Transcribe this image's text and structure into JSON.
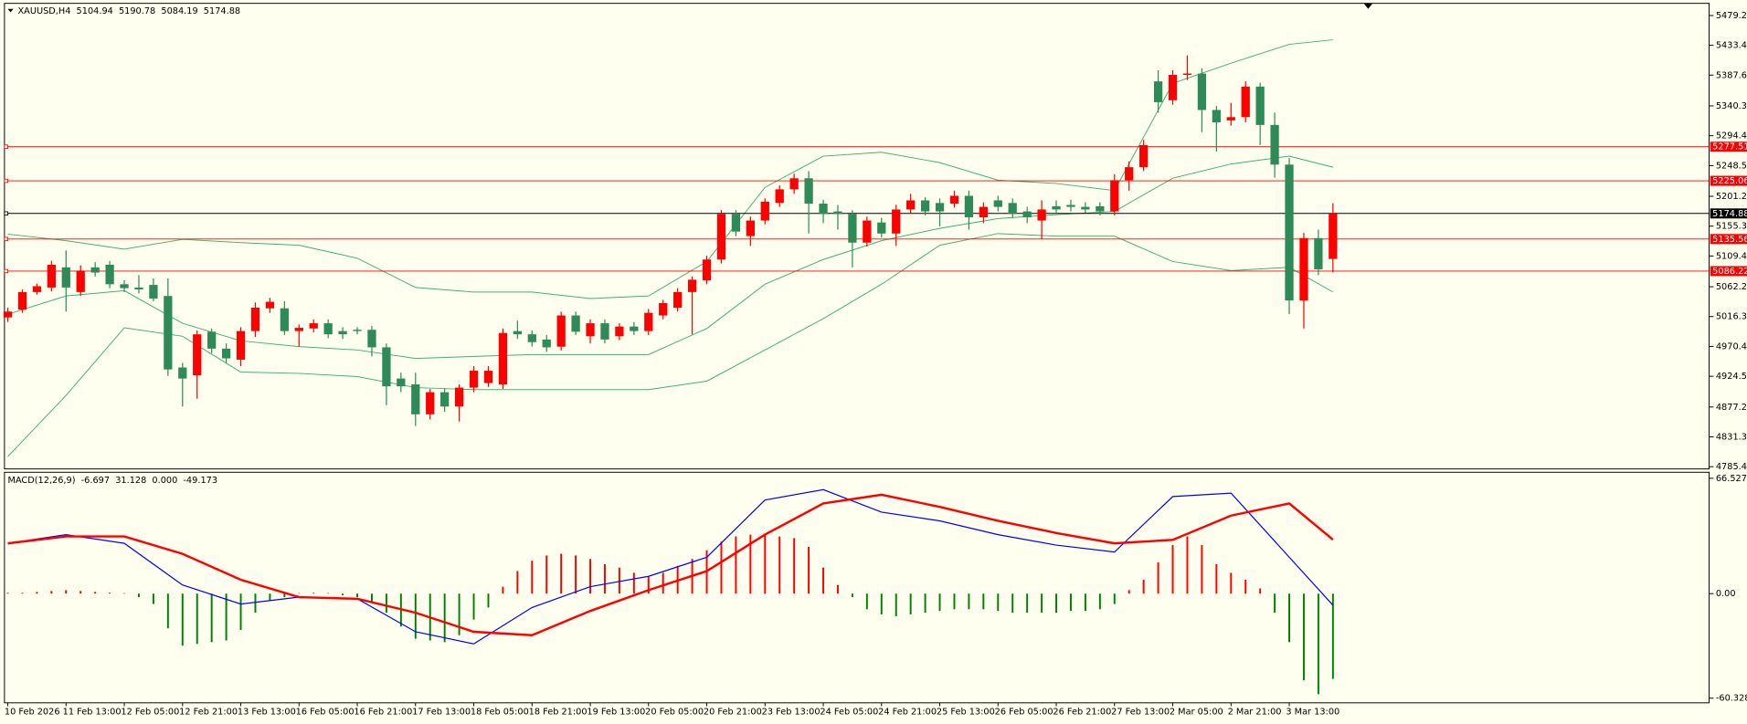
{
  "chart_data": [
    {
      "type": "candlestick",
      "title": "XAUUSD,H4",
      "categories": [
        "10 Feb 2026",
        null,
        null,
        null,
        "11 Feb 13:00",
        null,
        null,
        null,
        "12 Feb 05:00",
        null,
        null,
        null,
        "12 Feb 21:00",
        null,
        null,
        null,
        "13 Feb 13:00",
        null,
        null,
        null,
        "16 Feb 05:00",
        null,
        null,
        null,
        "16 Feb 21:00",
        null,
        null,
        null,
        "17 Feb 13:00",
        null,
        null,
        null,
        "18 Feb 05:00",
        null,
        null,
        null,
        "18 Feb 21:00",
        null,
        null,
        null,
        "19 Feb 13:00",
        null,
        null,
        null,
        "20 Feb 05:00",
        null,
        null,
        null,
        "20 Feb 21:00",
        null,
        null,
        null,
        "23 Feb 13:00",
        null,
        null,
        null,
        "24 Feb 05:00",
        null,
        null,
        null,
        "24 Feb 21:00",
        null,
        null,
        null,
        "25 Feb 13:00",
        null,
        null,
        null,
        "26 Feb 05:00",
        null,
        null,
        null,
        "26 Feb 21:00",
        null,
        null,
        null,
        "27 Feb 13:00",
        null,
        null,
        null,
        "2 Mar 05:00",
        null,
        null,
        null,
        "2 Mar 21:00",
        null,
        null,
        null,
        "3 Mar 13:00",
        null,
        null,
        null
      ],
      "open": [
        5015,
        5027,
        5054,
        5061,
        5092,
        5054,
        5092,
        5096,
        5066,
        5061,
        5065,
        5048,
        4938,
        4926,
        4993,
        4967,
        4950,
        4994,
        5029,
        5029,
        4994,
        4998,
        5006,
        4994,
        4996,
        4996,
        4969,
        4921,
        4912,
        4866,
        4900,
        4878,
        4907,
        4914,
        4912,
        4994,
        4989,
        4981,
        4970,
        5018,
        4986,
        5006,
        4986,
        5001,
        4994,
        5018,
        5030,
        5054,
        5072,
        5104,
        5174,
        5140,
        5164,
        5191,
        5212,
        5229,
        5190,
        5178,
        5174,
        5130,
        5161,
        5144,
        5181,
        5195,
        5191,
        5190,
        5202,
        5169,
        5195,
        5191,
        5178,
        5164,
        5186,
        5188,
        5185,
        5186,
        5178,
        5226,
        5246,
        5378,
        5349,
        5388,
        5390,
        5334,
        5318,
        5323,
        5370,
        5311,
        5250,
        5041,
        5137,
        5104.94
      ],
      "high": [
        5030,
        5058,
        5067,
        5102,
        5118,
        5095,
        5100,
        5102,
        5072,
        5080,
        5075,
        5075,
        4945,
        4995,
        4998,
        4975,
        5000,
        5038,
        5045,
        5040,
        5004,
        5012,
        5012,
        5000,
        5000,
        5002,
        4975,
        4930,
        4930,
        4905,
        4906,
        4912,
        4940,
        4940,
        4998,
        5010,
        4995,
        4988,
        5024,
        5024,
        5012,
        5012,
        5006,
        5008,
        5028,
        5042,
        5060,
        5078,
        5110,
        5180,
        5180,
        5170,
        5198,
        5218,
        5236,
        5240,
        5196,
        5188,
        5180,
        5170,
        5168,
        5188,
        5205,
        5200,
        5198,
        5210,
        5210,
        5192,
        5202,
        5198,
        5185,
        5195,
        5195,
        5196,
        5192,
        5192,
        5235,
        5255,
        5288,
        5395,
        5395,
        5418,
        5398,
        5340,
        5345,
        5378,
        5376,
        5330,
        5260,
        5145,
        5150,
        5190.78
      ],
      "low": [
        5008,
        5022,
        5050,
        5055,
        5024,
        5048,
        5078,
        5060,
        5054,
        5052,
        5040,
        4925,
        4878,
        4890,
        4960,
        4945,
        4940,
        4985,
        5022,
        4988,
        4970,
        4992,
        4983,
        4982,
        4989,
        4955,
        4880,
        4900,
        4848,
        4858,
        4870,
        4855,
        4900,
        4908,
        4905,
        4982,
        4970,
        4962,
        4964,
        4988,
        4975,
        4975,
        4980,
        4988,
        4988,
        5012,
        5024,
        4989,
        5066,
        5098,
        5140,
        5125,
        5158,
        5185,
        5205,
        5144,
        5160,
        5150,
        5092,
        5124,
        5138,
        5125,
        5175,
        5172,
        5155,
        5184,
        5150,
        5160,
        5178,
        5168,
        5160,
        5135,
        5174,
        5178,
        5176,
        5172,
        5172,
        5210,
        5240,
        5330,
        5342,
        5380,
        5300,
        5270,
        5310,
        5315,
        5280,
        5230,
        5020,
        4998,
        5080,
        5084.19
      ],
      "close": [
        5024,
        5054,
        5063,
        5096,
        5061,
        5087,
        5084,
        5066,
        5060,
        5058,
        5044,
        4935,
        4921,
        4989,
        4967,
        4952,
        4994,
        5030,
        5039,
        4994,
        4999,
        5006,
        4989,
        4989,
        4994,
        4969,
        4909,
        4909,
        4866,
        4900,
        4878,
        4907,
        4933,
        4933,
        4991,
        4989,
        4977,
        4969,
        5018,
        4993,
        5006,
        4981,
        5001,
        4994,
        5022,
        5037,
        5054,
        5073,
        5104,
        5174,
        5147,
        5164,
        5193,
        5212,
        5229,
        5190,
        5174,
        5174,
        5130,
        5164,
        5144,
        5181,
        5195,
        5178,
        5178,
        5202,
        5169,
        5185,
        5185,
        5174,
        5169,
        5181,
        5181,
        5185,
        5181,
        5178,
        5226,
        5246,
        5280,
        5346,
        5388,
        5390,
        5334,
        5315,
        5323,
        5370,
        5311,
        5250,
        5041,
        5137,
        5089,
        5174.88
      ],
      "up_color": "#ff0000",
      "down_color": "#2e8b57",
      "bands": [
        {
          "color": "#3cb371",
          "x": [
            0,
            4,
            8,
            12,
            16,
            20,
            24,
            28,
            32,
            36,
            40,
            44,
            48,
            52,
            56,
            60,
            64,
            68,
            72,
            76,
            80,
            84,
            88,
            91
          ],
          "values": [
            5143,
            5133,
            5120,
            5135,
            5130,
            5126,
            5106,
            5061,
            5054,
            5054,
            5044,
            5048,
            5101,
            5215,
            5263,
            5269,
            5253,
            5226,
            5221,
            5210,
            5375,
            5406,
            5435,
            5442
          ]
        },
        {
          "color": "#3cb371",
          "x": [
            0,
            4,
            8,
            12,
            16,
            20,
            24,
            28,
            32,
            36,
            40,
            44,
            48,
            52,
            56,
            60,
            64,
            68,
            72,
            76,
            80,
            84,
            88,
            91
          ],
          "values": [
            5020,
            5048,
            5056,
            5006,
            4979,
            4970,
            4965,
            4952,
            4955,
            4958,
            4958,
            4958,
            4998,
            5066,
            5104,
            5133,
            5152,
            5167,
            5173,
            5178,
            5229,
            5251,
            5263,
            5246
          ]
        },
        {
          "color": "#3cb371",
          "x": [
            0,
            4,
            8,
            12,
            16,
            20,
            24,
            28,
            32,
            36,
            40,
            44,
            48,
            52,
            56,
            60,
            64,
            68,
            72,
            76,
            80,
            84,
            88,
            91
          ],
          "values": [
            4801,
            4895,
            4999,
            4986,
            4931,
            4929,
            4924,
            4907,
            4904,
            4904,
            4904,
            4904,
            4917,
            4965,
            5013,
            5066,
            5126,
            5144,
            5140,
            5140,
            5101,
            5087,
            5092,
            5054
          ]
        }
      ],
      "levels": [
        {
          "value": 5277.51,
          "color": "#ff0000"
        },
        {
          "value": 5225.06,
          "color": "#ff0000"
        },
        {
          "value": 5174.88,
          "color": "#000000"
        },
        {
          "value": 5135.56,
          "color": "#ff0000"
        },
        {
          "value": 5086.22,
          "color": "#ff0000"
        }
      ],
      "ylim": [
        4782,
        5498
      ],
      "yticks": [
        5479.25,
        5433.45,
        5387.65,
        {
          "value": 5340.3,
          "label": "5340.30"
        },
        {
          "value": 5294.4,
          "label": "5294.40"
        },
        {
          "value": 5248.5,
          "label": "5248.50"
        },
        5201.25,
        5155.35,
        5109.45,
        {
          "value": 5062.2,
          "label": "5062.20"
        },
        {
          "value": 5016.3,
          "label": "5016.30"
        },
        {
          "value": 4970.4,
          "label": "4970.40"
        },
        {
          "value": 4924.5,
          "label": "4924.50"
        },
        4877.25,
        4831.35,
        4785.45
      ]
    },
    {
      "type": "macd",
      "title": "MACD(12,26,9)",
      "histogram": {
        "pos_color": "#ff0000",
        "neg_color": "#008000",
        "values": [
          0.5,
          0.5,
          1,
          1.5,
          2,
          1.5,
          1,
          0.5,
          0.3,
          -2,
          -6,
          -20,
          -30,
          -29,
          -28,
          -27,
          -21,
          -11,
          -4,
          -2,
          0.3,
          0.5,
          0.3,
          -1,
          -2,
          -5,
          -11,
          -19,
          -26,
          -27,
          -28,
          -24,
          -15,
          -8,
          4,
          13,
          19,
          22,
          23,
          22,
          20,
          17,
          15,
          12,
          10,
          12,
          16,
          20,
          25,
          30,
          33,
          34,
          34,
          33,
          32,
          27,
          15,
          5,
          -2,
          -9,
          -12,
          -13,
          -12,
          -11,
          -10,
          -9,
          -9,
          -9,
          -10,
          -11,
          -11,
          -11,
          -11,
          -10,
          -10,
          -9,
          -6,
          2,
          8,
          18,
          28,
          33,
          28,
          17,
          12,
          8,
          3,
          -11,
          -28,
          -50,
          -58,
          -49.173
        ]
      },
      "series": [
        {
          "color": "#0000ff",
          "x": [
            0,
            4,
            8,
            12,
            16,
            20,
            24,
            28,
            32,
            36,
            40,
            44,
            48,
            52,
            56,
            60,
            64,
            68,
            72,
            76,
            80,
            84,
            88,
            91
          ],
          "values": [
            29,
            34,
            29,
            5,
            -6,
            -2,
            -3,
            -22,
            -29,
            -8,
            4,
            10,
            21,
            54,
            60,
            47,
            42,
            34,
            28,
            24,
            56,
            58,
            21,
            -6.697
          ]
        },
        {
          "color": "#ff0000",
          "x": [
            0,
            4,
            8,
            12,
            16,
            20,
            24,
            28,
            32,
            36,
            40,
            44,
            48,
            52,
            56,
            60,
            64,
            68,
            72,
            76,
            80,
            84,
            88,
            91
          ],
          "values": [
            29,
            33,
            33,
            23,
            8,
            -2,
            -3,
            -11,
            -22,
            -24,
            -10,
            2,
            13,
            34,
            52,
            57,
            50,
            42,
            35,
            29,
            31,
            45,
            52,
            31.128
          ]
        }
      ],
      "readout_extra": {
        "value": 0,
        "label": "0.000"
      },
      "ylim": [
        -63,
        70
      ],
      "yticks": [
        66.527,
        {
          "value": 0,
          "label": "0.00"
        },
        -60.328
      ]
    }
  ]
}
